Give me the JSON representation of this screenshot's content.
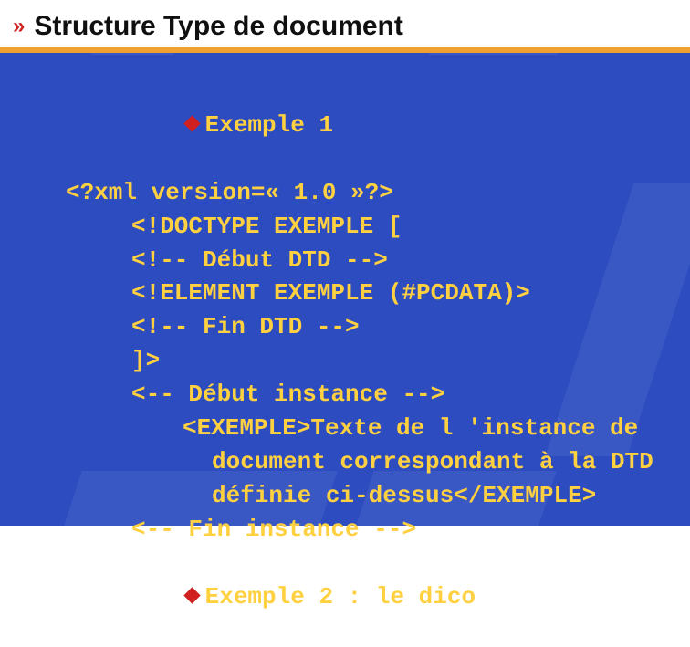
{
  "colors": {
    "background": "#2c4cc0",
    "header_bg": "#ffffff",
    "separator": "#f0a030",
    "chevron": "#d02020",
    "diamond": "#d02020",
    "title_text": "#101010",
    "body_text": "#ffd040"
  },
  "typography": {
    "title_family": "Arial",
    "title_size_pt": 22,
    "title_weight": "bold",
    "body_family": "Courier New",
    "body_size_pt": 20,
    "body_weight": "bold"
  },
  "header": {
    "chevrons": "»",
    "title": "Structure Type de document"
  },
  "body": {
    "exemple1_label": "Exemple 1",
    "line_xml": "<?xml version=« 1.0 »?>",
    "line_doctype": "<!DOCTYPE EXEMPLE [",
    "line_debut_dtd": "<!-- Début DTD -->",
    "line_element": "<!ELEMENT EXEMPLE (#PCDATA)>",
    "line_fin_dtd": "<!-- Fin DTD -->",
    "line_close": "]>",
    "line_debut_inst": "<-- Début instance -->",
    "inst_l1": "<EXEMPLE>Texte de l 'instance de",
    "inst_l2": "document correspondant à la DTD",
    "inst_l3": "définie ci-dessus</EXEMPLE>",
    "line_fin_inst": "<-- Fin instance -->",
    "exemple2_label": "Exemple 2 : le dico"
  }
}
